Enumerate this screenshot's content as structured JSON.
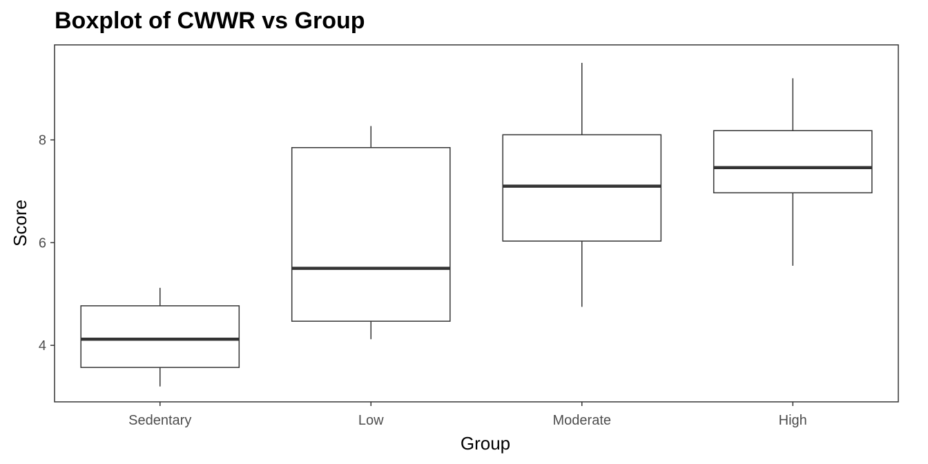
{
  "chart_data": {
    "type": "boxplot",
    "title": "Boxplot of CWWR vs Group",
    "xlabel": "Group",
    "ylabel": "Score",
    "categories": [
      "Sedentary",
      "Low",
      "Moderate",
      "High"
    ],
    "boxes": [
      {
        "min": 3.2,
        "q1": 3.57,
        "median": 4.12,
        "q3": 4.77,
        "max": 5.12
      },
      {
        "min": 4.12,
        "q1": 4.47,
        "median": 5.5,
        "q3": 7.85,
        "max": 8.27
      },
      {
        "min": 4.75,
        "q1": 6.03,
        "median": 7.1,
        "q3": 8.1,
        "max": 9.5
      },
      {
        "min": 5.55,
        "q1": 6.97,
        "median": 7.46,
        "q3": 8.18,
        "max": 9.2
      }
    ],
    "yticks": [
      4,
      6,
      8
    ],
    "ylim": [
      2.9,
      9.85
    ],
    "grid": false,
    "legend": "none",
    "colors": {
      "box_stroke": "#333333",
      "box_fill": "#ffffff",
      "tick_text": "#4d4d4d",
      "axis_line": "#333333"
    }
  }
}
